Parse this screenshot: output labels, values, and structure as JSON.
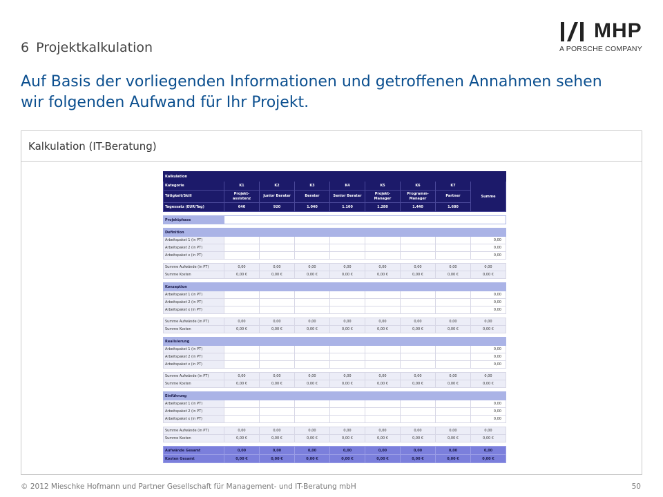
{
  "chapter": {
    "number": "6",
    "title": "Projektkalkulation"
  },
  "headline": "Auf Basis der vorliegenden Informationen und getroffenen Annahmen sehen wir folgenden Aufwand für Ihr Projekt.",
  "logo": {
    "brand": "MHP",
    "subtitle": "A PORSCHE COMPANY"
  },
  "panel": {
    "title": "Kalkulation (IT-Beratung)"
  },
  "sheet": {
    "title": "Kalkulation",
    "kategorie_label": "Kategorie",
    "kategorien": [
      "K1",
      "K2",
      "K3",
      "K4",
      "K5",
      "K6",
      "K7"
    ],
    "summe_label": "Summe",
    "skill_label": "Tätigkeit/Skill",
    "skills": [
      "Projekt-assistenz",
      "Junior Berater",
      "Berater",
      "Senior Berater",
      "Projekt-Manager",
      "Programm-Manager",
      "Partner"
    ],
    "tagessatz_label": "Tagessatz (EUR/Tag)",
    "tagessaetze": [
      "640",
      "920",
      "1.040",
      "1.160",
      "1.280",
      "1.440",
      "1.680"
    ],
    "projektphase_label": "Projektphase",
    "phases": [
      {
        "name": "Definition",
        "rows": [
          {
            "label": "Arbeitspaket 1 (in PT)",
            "sum": "0,00"
          },
          {
            "label": "Arbeitspaket 2 (in PT)",
            "sum": "0,00"
          },
          {
            "label": "Arbeitspaket x (in PT)",
            "sum": "0,00"
          }
        ],
        "aufwand_label": "Summe Aufwände (in PT)",
        "aufwand": [
          "0,00",
          "0,00",
          "0,00",
          "0,00",
          "0,00",
          "0,00",
          "0,00",
          "0,00"
        ],
        "kosten_label": "Summe Kosten",
        "kosten": [
          "0,00 €",
          "0,00 €",
          "0,00 €",
          "0,00 €",
          "0,00 €",
          "0,00 €",
          "0,00 €",
          "0,00 €"
        ]
      },
      {
        "name": "Konzeption",
        "rows": [
          {
            "label": "Arbeitspaket 1 (in PT)",
            "sum": "0,00"
          },
          {
            "label": "Arbeitspaket 2 (in PT)",
            "sum": "0,00"
          },
          {
            "label": "Arbeitspaket x (in PT)",
            "sum": "0,00"
          }
        ],
        "aufwand_label": "Summe Aufwände (in PT)",
        "aufwand": [
          "0,00",
          "0,00",
          "0,00",
          "0,00",
          "0,00",
          "0,00",
          "0,00",
          "0,00"
        ],
        "kosten_label": "Summe Kosten",
        "kosten": [
          "0,00 €",
          "0,00 €",
          "0,00 €",
          "0,00 €",
          "0,00 €",
          "0,00 €",
          "0,00 €",
          "0,00 €"
        ]
      },
      {
        "name": "Realisierung",
        "rows": [
          {
            "label": "Arbeitspaket 1 (in PT)",
            "sum": "0,00"
          },
          {
            "label": "Arbeitspaket 2 (in PT)",
            "sum": "0,00"
          },
          {
            "label": "Arbeitspaket x (in PT)",
            "sum": "0,00"
          }
        ],
        "aufwand_label": "Summe Aufwände (in PT)",
        "aufwand": [
          "0,00",
          "0,00",
          "0,00",
          "0,00",
          "0,00",
          "0,00",
          "0,00",
          "0,00"
        ],
        "kosten_label": "Summe Kosten",
        "kosten": [
          "0,00 €",
          "0,00 €",
          "0,00 €",
          "0,00 €",
          "0,00 €",
          "0,00 €",
          "0,00 €",
          "0,00 €"
        ]
      },
      {
        "name": "Einführung",
        "rows": [
          {
            "label": "Arbeitspaket 1 (in PT)",
            "sum": "0,00"
          },
          {
            "label": "Arbeitspaket 2 (in PT)",
            "sum": "0,00"
          },
          {
            "label": "Arbeitspaket x (in PT)",
            "sum": "0,00"
          }
        ],
        "aufwand_label": "Summe Aufwände (in PT)",
        "aufwand": [
          "0,00",
          "0,00",
          "0,00",
          "0,00",
          "0,00",
          "0,00",
          "0,00",
          "0,00"
        ],
        "kosten_label": "Summe Kosten",
        "kosten": [
          "0,00 €",
          "0,00 €",
          "0,00 €",
          "0,00 €",
          "0,00 €",
          "0,00 €",
          "0,00 €",
          "0,00 €"
        ]
      }
    ],
    "aufwaende_gesamt_label": "Aufwände Gesamt",
    "aufwaende_gesamt": [
      "0,00",
      "0,00",
      "0,00",
      "0,00",
      "0,00",
      "0,00",
      "0,00",
      "0,00"
    ],
    "kosten_gesamt_label": "Kosten Gesamt",
    "kosten_gesamt": [
      "0,00 €",
      "0,00 €",
      "0,00 €",
      "0,00 €",
      "0,00 €",
      "0,00 €",
      "0,00 €",
      "0,00 €"
    ]
  },
  "footer": {
    "copyright": "© 2012 Mieschke Hofmann und Partner Gesellschaft für Management- und IT-Beratung mbH",
    "page": "50"
  }
}
